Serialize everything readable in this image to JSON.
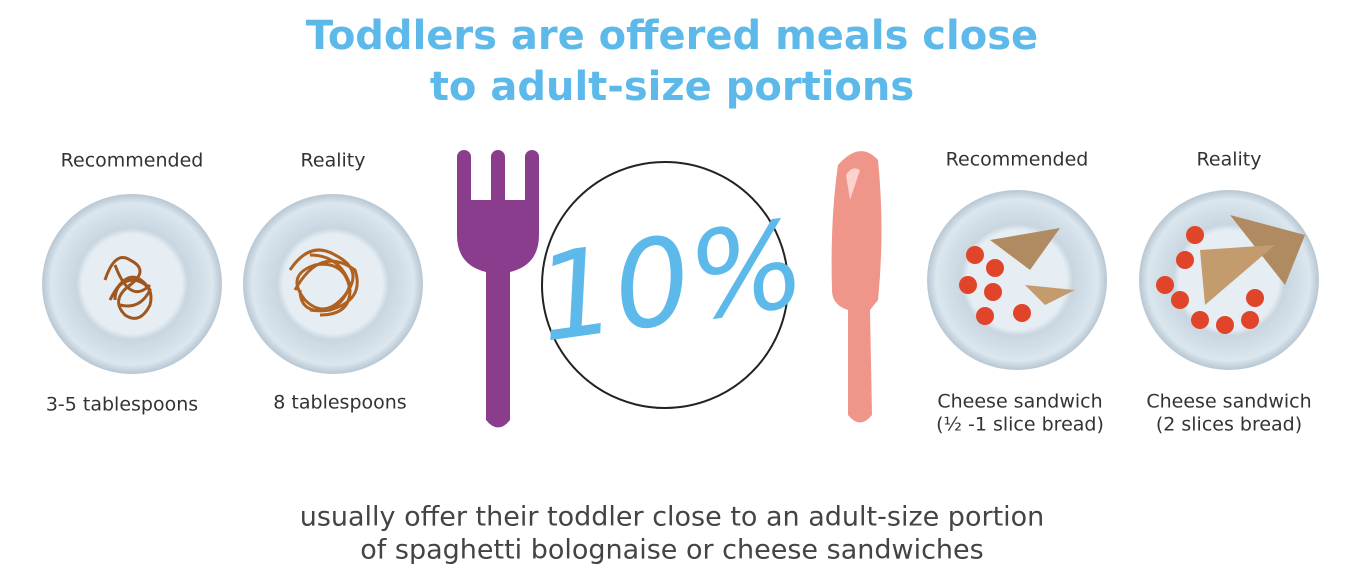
{
  "header": {
    "title_lines": [
      "Toddlers are offered meals close",
      "to adult-size portions"
    ]
  },
  "panels": [
    {
      "label": "Recommended",
      "caption_lines": [
        "3-5 tablespoons"
      ]
    },
    {
      "label": "Reality",
      "caption_lines": [
        "8 tablespoons"
      ]
    },
    {
      "label": "Recommended",
      "caption_lines": [
        "Cheese sandwich",
        "(½ -1 slice bread)"
      ]
    },
    {
      "label": "Reality",
      "caption_lines": [
        "Cheese sandwich",
        "(2 slices bread)"
      ]
    }
  ],
  "center": {
    "statistic": "10%"
  },
  "footer": {
    "lines": [
      "usually offer their toddler close to an adult-size portion",
      "of spaghetti bolognaise or cheese sandwiches"
    ]
  }
}
